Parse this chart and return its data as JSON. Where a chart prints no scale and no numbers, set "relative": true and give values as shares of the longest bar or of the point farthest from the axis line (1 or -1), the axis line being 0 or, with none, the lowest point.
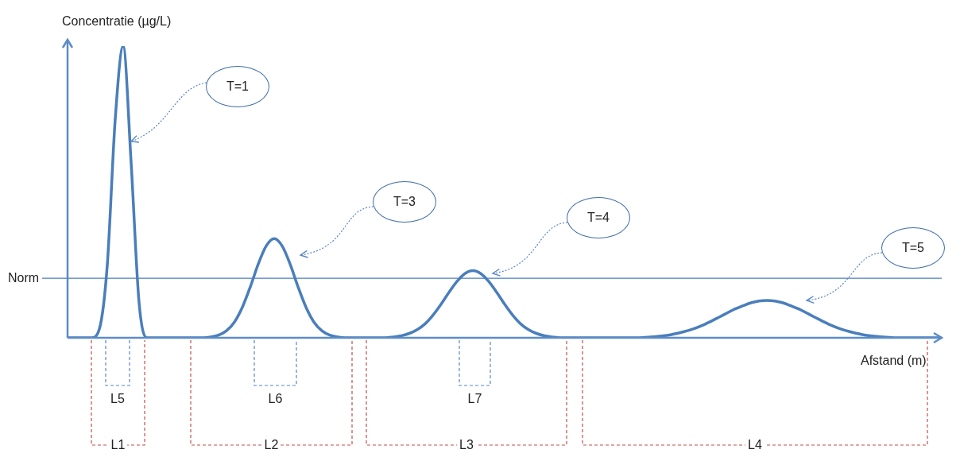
{
  "chart_data": {
    "type": "line",
    "relative": true,
    "ylabel": "Concentratie (µg/L)",
    "xlabel": "Afstand (m)",
    "marker": "none",
    "categories": [
      null,
      null,
      null,
      null,
      null,
      null,
      null,
      null,
      null,
      null,
      null,
      null,
      null,
      null,
      null,
      null,
      null,
      null,
      null,
      null,
      null,
      null,
      null,
      null,
      null,
      null,
      null,
      null,
      null,
      null,
      null,
      null,
      null,
      null,
      null,
      null,
      null,
      null,
      null,
      null,
      null,
      null,
      null,
      null,
      null,
      null,
      null,
      null,
      null,
      null,
      null,
      null,
      null,
      null,
      null,
      null,
      null,
      null,
      null,
      null,
      null,
      null,
      null,
      null,
      null,
      null,
      null,
      null,
      null,
      null,
      null,
      null,
      null,
      null,
      null,
      null,
      null,
      null,
      null,
      null,
      null,
      null,
      null,
      null,
      null,
      null,
      null,
      null,
      null,
      null,
      null,
      null,
      null,
      null,
      null,
      null,
      null,
      null,
      null,
      null,
      null,
      null,
      null,
      null,
      null,
      null,
      null,
      null,
      null,
      null,
      null
    ],
    "series": [
      {
        "color": "#4a7ebb",
        "values": [
          0,
          0,
          0,
          0,
          0.03,
          0.25,
          0.75,
          1,
          0.6,
          0.12,
          0,
          0,
          0,
          0,
          0,
          0,
          0,
          0,
          0.003,
          0.009,
          0.024,
          0.054,
          0.105,
          0.175,
          0.253,
          0.315,
          0.34,
          0.315,
          0.253,
          0.175,
          0.105,
          0.054,
          0.024,
          0.009,
          0.003,
          0,
          0,
          0,
          0,
          0,
          0,
          0.003,
          0.007,
          0.015,
          0.028,
          0.048,
          0.078,
          0.115,
          0.156,
          0.193,
          0.22,
          0.23,
          0.22,
          0.193,
          0.156,
          0.115,
          0.078,
          0.048,
          0.028,
          0.015,
          0.007,
          0.003,
          0,
          0,
          0,
          0,
          0,
          0,
          0,
          0,
          0,
          0,
          0,
          0.002,
          0.004,
          0.007,
          0.011,
          0.017,
          0.024,
          0.033,
          0.044,
          0.057,
          0.071,
          0.085,
          0.099,
          0.11,
          0.12,
          0.126,
          0.128,
          0.126,
          0.12,
          0.11,
          0.099,
          0.085,
          0.071,
          0.057,
          0.044,
          0.033,
          0.024,
          0.017,
          0.011,
          0.007,
          0.004,
          0.002,
          0,
          0,
          0,
          0,
          0,
          0,
          0
        ]
      }
    ],
    "ref_lines": [
      {
        "axis": "y",
        "value": 0.204,
        "label": "Norm",
        "color": "#4a7ebb"
      }
    ],
    "annotations": [
      "T=1",
      "T=3",
      "T=4",
      "T=5",
      "L5",
      "L6",
      "L7",
      "L1",
      "L2",
      "L3",
      "L4"
    ]
  }
}
